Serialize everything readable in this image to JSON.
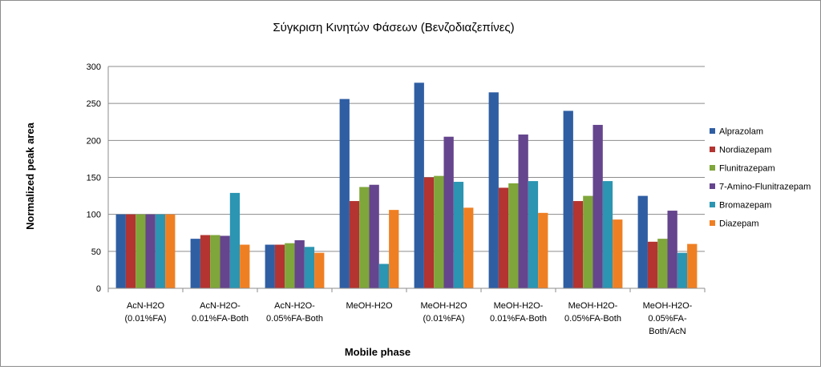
{
  "chart_data": {
    "type": "bar",
    "title": "Σύγκριση Κινητών Φάσεων (Βενζοδιαζεπίνες)",
    "xlabel": "Mobile phase",
    "ylabel": "Normalized peak area",
    "ylim": [
      0,
      300
    ],
    "yticks": [
      0,
      50,
      100,
      150,
      200,
      250,
      300
    ],
    "grid": true,
    "legend_position": "right",
    "categories": [
      [
        "AcN-H2O",
        "(0.01%FA)"
      ],
      [
        "AcN-H2O-",
        "0.01%FA-Both"
      ],
      [
        "AcN-H2O-",
        "0.05%FA-Both"
      ],
      [
        "MeOH-H2O"
      ],
      [
        "MeOH-H2O",
        "(0.01%FA)"
      ],
      [
        "MeOH-H2O-",
        "0.01%FA-Both"
      ],
      [
        "MeOH-H2O-",
        "0.05%FA-Both"
      ],
      [
        "MeOH-H2O-",
        "0.05%FA-",
        "Both/AcN"
      ]
    ],
    "series": [
      {
        "name": "Alprazolam",
        "color": "#2f5ea3",
        "values": [
          100,
          67,
          59,
          256,
          278,
          265,
          240,
          125
        ]
      },
      {
        "name": "Nordiazepam",
        "color": "#b33431",
        "values": [
          100,
          72,
          59,
          118,
          150,
          136,
          118,
          63
        ]
      },
      {
        "name": "Flunitrazepam",
        "color": "#7fa63a",
        "values": [
          100,
          72,
          61,
          137,
          152,
          142,
          125,
          67
        ]
      },
      {
        "name": "7-Amino-Flunitrazepam",
        "color": "#65458d",
        "values": [
          100,
          71,
          65,
          140,
          205,
          208,
          221,
          105
        ]
      },
      {
        "name": "Bromazepam",
        "color": "#2b95b2",
        "values": [
          100,
          129,
          56,
          33,
          144,
          145,
          145,
          48
        ]
      },
      {
        "name": "Diazepam",
        "color": "#ef7f23",
        "values": [
          100,
          59,
          48,
          106,
          109,
          102,
          93,
          60
        ]
      }
    ]
  }
}
